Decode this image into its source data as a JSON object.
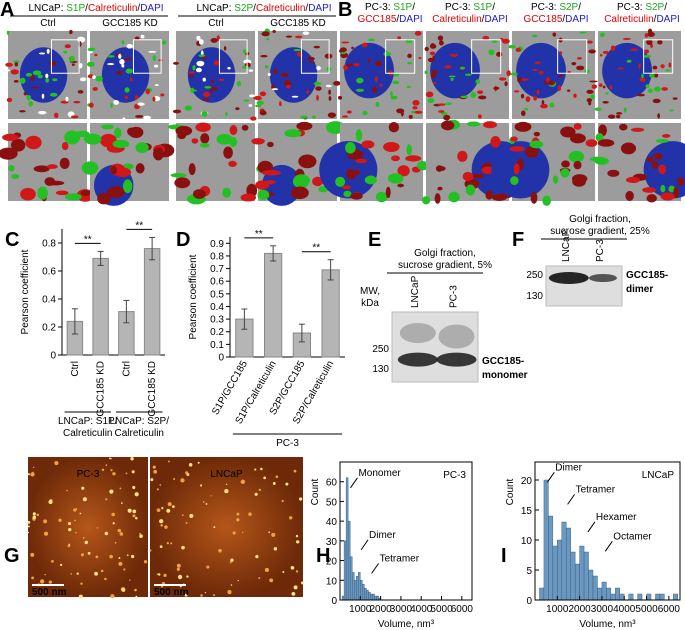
{
  "panels": {
    "A": {
      "label": "A",
      "groups": [
        {
          "title": [
            {
              "text": "LNCaP: ",
              "color": "#000000"
            },
            {
              "text": "S1P",
              "color": "#1aa81a"
            },
            {
              "text": "/",
              "color": "#000000"
            },
            {
              "text": "Calreticulin",
              "color": "#e00000"
            },
            {
              "text": "/",
              "color": "#000000"
            },
            {
              "text": "DAPI",
              "color": "#1a1acc"
            }
          ],
          "columns": [
            "Ctrl",
            "GCC185 KD"
          ]
        },
        {
          "title": [
            {
              "text": "LNCaP: ",
              "color": "#000000"
            },
            {
              "text": "S2P",
              "color": "#1aa81a"
            },
            {
              "text": "/",
              "color": "#000000"
            },
            {
              "text": "Calreticulin",
              "color": "#e00000"
            },
            {
              "text": "/",
              "color": "#000000"
            },
            {
              "text": "DAPI",
              "color": "#1a1acc"
            }
          ],
          "columns": [
            "Ctrl",
            "GCC185 KD"
          ]
        }
      ]
    },
    "B": {
      "label": "B",
      "images": [
        {
          "title": [
            [
              {
                "text": "PC-3: ",
                "color": "#000000"
              },
              {
                "text": "S1P",
                "color": "#1aa81a"
              },
              {
                "text": "/",
                "color": "#000000"
              }
            ],
            [
              {
                "text": "GCC185",
                "color": "#e00000"
              },
              {
                "text": "/",
                "color": "#000000"
              },
              {
                "text": "DAPI",
                "color": "#1a1acc"
              }
            ]
          ]
        },
        {
          "title": [
            [
              {
                "text": "PC-3: ",
                "color": "#000000"
              },
              {
                "text": "S1P",
                "color": "#1aa81a"
              },
              {
                "text": "/",
                "color": "#000000"
              }
            ],
            [
              {
                "text": "Calreticulin",
                "color": "#e00000"
              },
              {
                "text": "/",
                "color": "#000000"
              },
              {
                "text": "DAPI",
                "color": "#1a1acc"
              }
            ]
          ]
        },
        {
          "title": [
            [
              {
                "text": "PC-3: ",
                "color": "#000000"
              },
              {
                "text": "S2P",
                "color": "#1aa81a"
              },
              {
                "text": "/",
                "color": "#000000"
              }
            ],
            [
              {
                "text": "GCC185",
                "color": "#e00000"
              },
              {
                "text": "/",
                "color": "#000000"
              },
              {
                "text": "DAPI",
                "color": "#1a1acc"
              }
            ]
          ]
        },
        {
          "title": [
            [
              {
                "text": "PC-3: ",
                "color": "#000000"
              },
              {
                "text": "S2P",
                "color": "#1aa81a"
              },
              {
                "text": "/",
                "color": "#000000"
              }
            ],
            [
              {
                "text": "Calreticulin",
                "color": "#e00000"
              },
              {
                "text": "/",
                "color": "#000000"
              },
              {
                "text": "DAPI",
                "color": "#1a1acc"
              }
            ]
          ]
        }
      ]
    },
    "E": {
      "label": "E",
      "title": [
        "Golgi fraction,",
        "sucrose gradient, 5%"
      ],
      "mw_label": [
        "MW,",
        "kDa"
      ],
      "lanes": [
        "LNCaP",
        "PC-3"
      ],
      "markers": [
        250,
        130
      ],
      "band_label": [
        "GCC185-",
        "monomer"
      ]
    },
    "F": {
      "label": "F",
      "title": [
        "Golgi fraction,",
        "sucrose gradient, 25%"
      ],
      "lanes": [
        "LNCaP",
        "PC-3"
      ],
      "markers": [
        250,
        130
      ],
      "band_label": [
        "GCC185-",
        "dimer"
      ]
    },
    "G": {
      "label": "G",
      "images": [
        {
          "name": "PC-3",
          "scale_bar": "500 nm"
        },
        {
          "name": "LNCaP",
          "scale_bar": "500 nm"
        }
      ]
    }
  },
  "chart_data": [
    {
      "type": "bar",
      "label": "C",
      "ylabel": "Pearson coefficient",
      "categories": [
        "Ctrl",
        "GCC185 KD",
        "Ctrl",
        "GCC185 KD"
      ],
      "values": [
        0.24,
        0.69,
        0.31,
        0.76
      ],
      "errors": [
        0.09,
        0.05,
        0.08,
        0.08
      ],
      "color": "#b5b5b5",
      "ylim": [
        0,
        0.9
      ],
      "yticks": [
        0,
        0.2,
        0.4,
        0.6,
        0.8
      ],
      "significance": [
        "**",
        "**"
      ],
      "groups": [
        [
          "LNCaP: S1P/",
          "Calreticulin"
        ],
        [
          "LNCaP: S2P/",
          "Calreticulin"
        ]
      ]
    },
    {
      "type": "bar",
      "label": "D",
      "ylabel": "Pearson coefficient",
      "categories": [
        "S1P/GCC185",
        "S1P/Calreticulin",
        "S2P/GCC185",
        "S2P/Calreticulin"
      ],
      "values": [
        0.3,
        0.82,
        0.19,
        0.69
      ],
      "errors": [
        0.08,
        0.06,
        0.07,
        0.08
      ],
      "color": "#b5b5b5",
      "ylim": [
        0,
        0.95
      ],
      "yticks": [
        0,
        0.1,
        0.2,
        0.3,
        0.4,
        0.5,
        0.6,
        0.7,
        0.8,
        0.9
      ],
      "significance": [
        "**",
        "**"
      ],
      "groups": [
        [
          "PC-3"
        ]
      ]
    },
    {
      "type": "histogram",
      "label": "H",
      "title": "PC-3",
      "ylabel": "Count",
      "xlabel": "Volume, nm³",
      "bins": [
        0,
        100,
        200,
        300,
        400,
        500,
        600,
        700,
        800,
        900,
        1000,
        1100,
        1200,
        1300,
        1400,
        1500,
        1600,
        1700,
        1800,
        1900,
        2000
      ],
      "counts": [
        0,
        2,
        30,
        62,
        40,
        22,
        14,
        10,
        12,
        14,
        10,
        8,
        6,
        5,
        4,
        3,
        3,
        2,
        2,
        1
      ],
      "color": "#6a98c0",
      "xlim": [
        0,
        6500
      ],
      "xticks": [
        1000,
        2000,
        3000,
        4000,
        5000,
        6000
      ],
      "ylim": [
        0,
        70
      ],
      "yticks": [
        0,
        10,
        20,
        30,
        40,
        50,
        60
      ],
      "annotations": [
        "Monomer",
        "Dimer",
        "Tetramer"
      ]
    },
    {
      "type": "histogram",
      "label": "I",
      "title": "LNCaP",
      "ylabel": "Count",
      "xlabel": "Volume, nm³",
      "bins": [
        0,
        200,
        400,
        600,
        800,
        1000,
        1200,
        1400,
        1600,
        1800,
        2000,
        2200,
        2400,
        2600,
        2800,
        3000,
        3200,
        3400,
        3600,
        3800,
        4000,
        4200,
        4400,
        4600,
        4800,
        5000,
        5200,
        5400,
        5600,
        5800,
        6000,
        6200,
        6400
      ],
      "counts": [
        0,
        2,
        20,
        14,
        9,
        10,
        13,
        12,
        8,
        6,
        9,
        8,
        5,
        4,
        2,
        3,
        2,
        1,
        2,
        1,
        0,
        1,
        0,
        1,
        0,
        1,
        0,
        1,
        1,
        0,
        0,
        1
      ],
      "color": "#6a98c0",
      "xlim": [
        0,
        6500
      ],
      "xticks": [
        1000,
        2000,
        3000,
        4000,
        5000,
        6000
      ],
      "ylim": [
        0,
        23
      ],
      "yticks": [
        0,
        5,
        10,
        15,
        20
      ],
      "annotations": [
        "Dimer",
        "Tetramer",
        "Hexamer",
        "Octamer"
      ]
    }
  ]
}
